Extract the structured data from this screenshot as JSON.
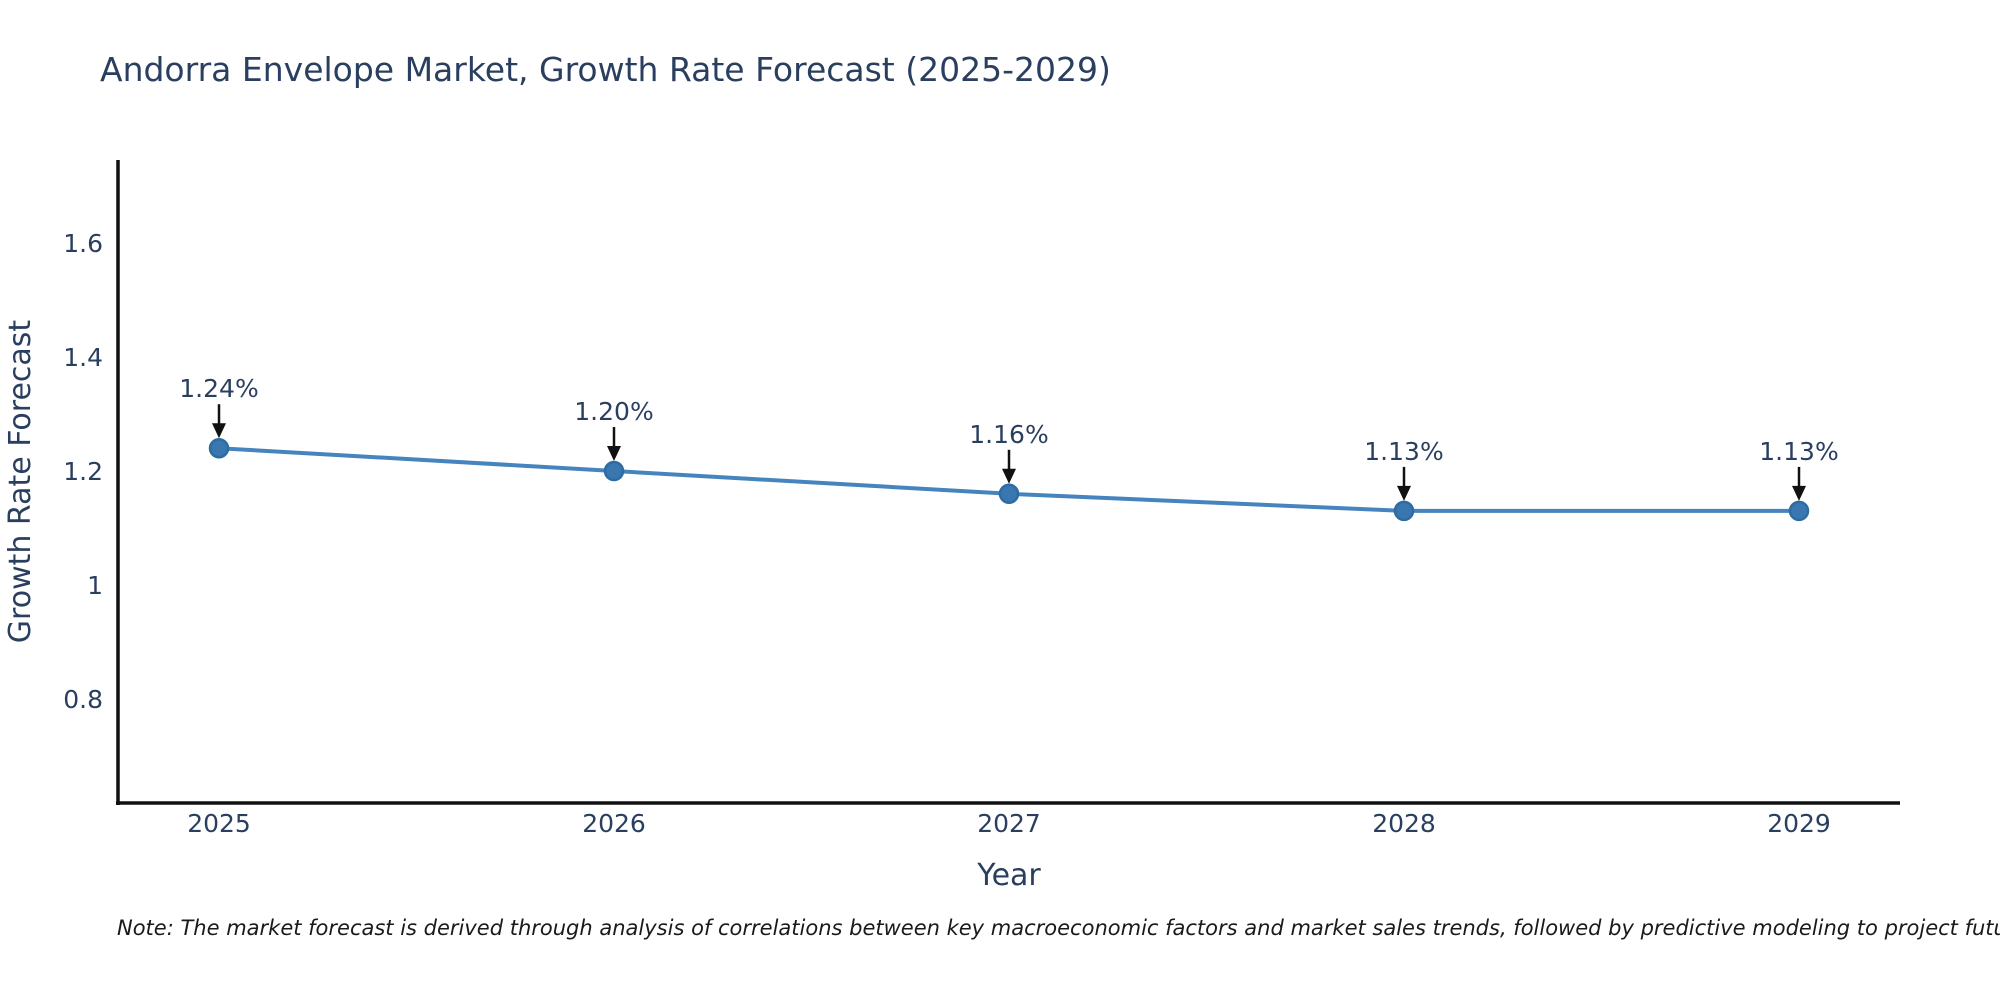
{
  "page": {
    "note": "Note: The market forecast is derived through analysis of correlations between key macroeconomic factors and market sales trends, followed by predictive modeling to project future sales"
  },
  "chart_data": {
    "type": "line",
    "title": "Andorra Envelope Market, Growth Rate Forecast (2025-2029)",
    "xlabel": "Year",
    "ylabel": "Growth Rate Forecast",
    "categories": [
      "2025",
      "2026",
      "2027",
      "2028",
      "2029"
    ],
    "series": [
      {
        "name": "Growth Rate Forecast",
        "values": [
          1.24,
          1.2,
          1.16,
          1.13,
          1.13
        ],
        "point_labels": [
          "1.24%",
          "1.20%",
          "1.16%",
          "1.13%",
          "1.13%"
        ]
      }
    ],
    "yticks": {
      "values": [
        1.6,
        1.4,
        1.2,
        1.0,
        0.8
      ],
      "labels": [
        "1.6",
        "1.4",
        "1.2",
        "1",
        "0.8"
      ]
    },
    "ylim": [
      0.62,
      1.75
    ],
    "grid": false,
    "legend": "none",
    "annotation_arrows": true,
    "colors": {
      "line": "#4684bd",
      "marker_fill": "#3a76b0",
      "marker_edge": "#2d6ca3",
      "axis": "#111111",
      "arrow": "#111111",
      "text": "#2a3f5f",
      "note_text": "#1a1a1a"
    }
  }
}
